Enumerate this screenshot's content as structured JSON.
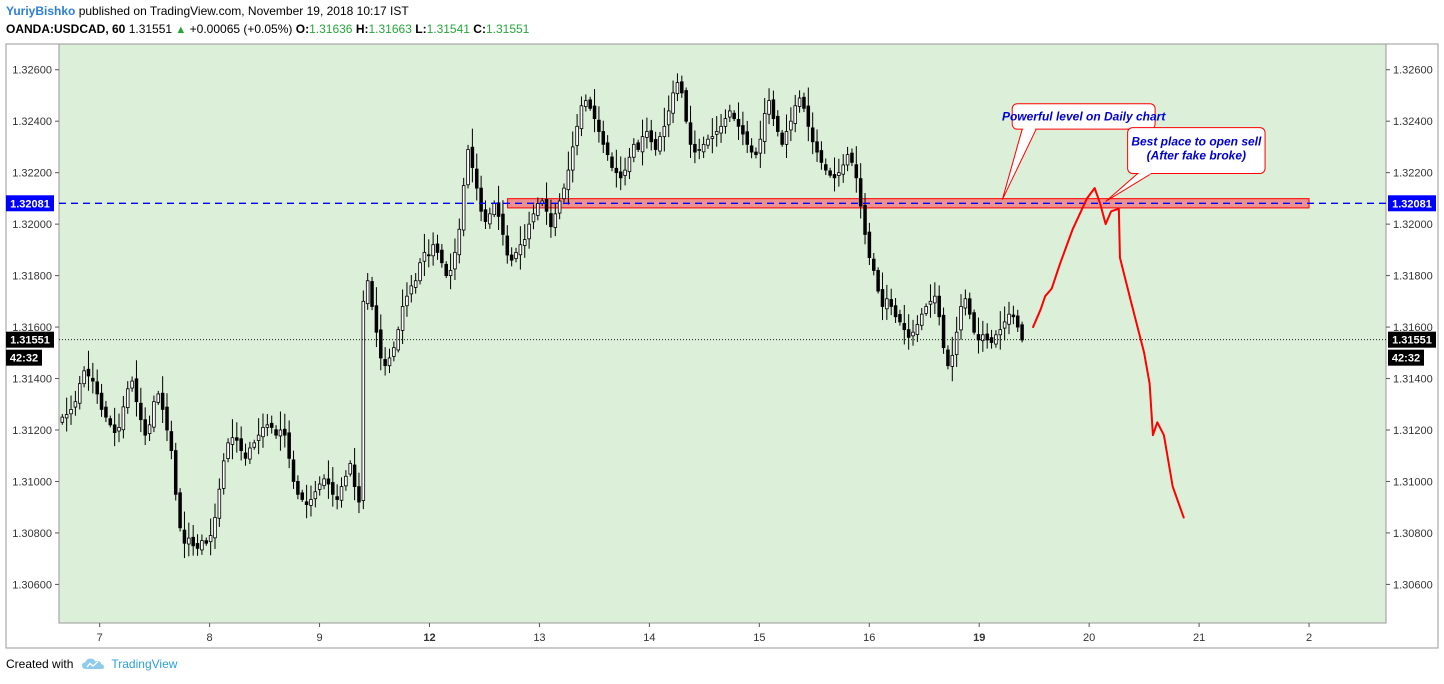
{
  "header": {
    "author": "YuriyBishko",
    "published_text": "published on TradingView.com, November 19, 2018 10:17 IST",
    "symbol": "OANDA:USDCAD, 60",
    "last": "1.31551",
    "change_arrow": "▲",
    "change": "+0.00065 (+0.05%)",
    "o_label": "O:",
    "o": "1.31636",
    "h_label": "H:",
    "h": "1.31663",
    "l_label": "L:",
    "l": "1.31541",
    "c_label": "C:",
    "c": "1.31551"
  },
  "footer": {
    "created_with": "Created with",
    "brand": "TradingView"
  },
  "colors": {
    "bull": "#ffffff",
    "bear": "#000000",
    "plot_bg": "#dcefd9",
    "level_line": "#0000ff",
    "zone_fill": "#f08080",
    "zone_stroke": "#ff0000",
    "drawing": "#ff0000",
    "annotation_text": "#0000cc"
  },
  "chart_data": {
    "type": "candlestick",
    "symbol": "OANDA:USDCAD",
    "timeframe": "60",
    "ylim": [
      1.3045,
      1.327
    ],
    "y_ticks": [
      "1.30600",
      "1.30800",
      "1.31000",
      "1.31200",
      "1.31400",
      "1.31600",
      "1.31800",
      "1.32000",
      "1.32200",
      "1.32400",
      "1.32600"
    ],
    "x_ticks": [
      {
        "label": "7",
        "x": 7,
        "bold": false
      },
      {
        "label": "8",
        "x": 8,
        "bold": false
      },
      {
        "label": "9",
        "x": 9,
        "bold": false
      },
      {
        "label": "12",
        "x": 10,
        "bold": true
      },
      {
        "label": "13",
        "x": 11,
        "bold": false
      },
      {
        "label": "14",
        "x": 12,
        "bold": false
      },
      {
        "label": "15",
        "x": 13,
        "bold": false
      },
      {
        "label": "16",
        "x": 14,
        "bold": false
      },
      {
        "label": "19",
        "x": 15,
        "bold": true
      },
      {
        "label": "20",
        "x": 16,
        "bold": false
      },
      {
        "label": "21",
        "x": 17,
        "bold": false
      },
      {
        "label": "2",
        "x": 18,
        "bold": false
      }
    ],
    "xlim": [
      6.63,
      18.7
    ],
    "candles_start_x": 6.66,
    "candles_end_x": 15.39,
    "closes": [
      1.3125,
      1.3126,
      1.3128,
      1.3131,
      1.3138,
      1.3143,
      1.3141,
      1.3139,
      1.3134,
      1.3128,
      1.3125,
      1.3122,
      1.3119,
      1.3121,
      1.3129,
      1.3136,
      1.3139,
      1.3131,
      1.3124,
      1.3118,
      1.3122,
      1.3131,
      1.3134,
      1.3128,
      1.312,
      1.3112,
      1.3095,
      1.3082,
      1.3076,
      1.3078,
      1.3075,
      1.3074,
      1.3077,
      1.3076,
      1.3079,
      1.3086,
      1.3097,
      1.3108,
      1.3115,
      1.3117,
      1.3116,
      1.3112,
      1.3109,
      1.3113,
      1.3115,
      1.3118,
      1.3121,
      1.3122,
      1.3121,
      1.3118,
      1.312,
      1.3118,
      1.3109,
      1.31,
      1.3095,
      1.3093,
      1.3091,
      1.3093,
      1.3096,
      1.3099,
      1.3101,
      1.3099,
      1.3095,
      1.3093,
      1.3098,
      1.3102,
      1.3107,
      1.3098,
      1.3092,
      1.317,
      1.3178,
      1.3168,
      1.3158,
      1.3148,
      1.3145,
      1.3148,
      1.3152,
      1.3159,
      1.3168,
      1.3172,
      1.3176,
      1.3178,
      1.3185,
      1.3189,
      1.3188,
      1.3192,
      1.3189,
      1.3185,
      1.318,
      1.3182,
      1.3189,
      1.3198,
      1.3215,
      1.3229,
      1.3222,
      1.3214,
      1.3205,
      1.3201,
      1.3204,
      1.3208,
      1.3203,
      1.3196,
      1.3188,
      1.3186,
      1.3189,
      1.3192,
      1.3194,
      1.32,
      1.3204,
      1.3208,
      1.3209,
      1.3205,
      1.3199,
      1.3204,
      1.3209,
      1.3214,
      1.3221,
      1.323,
      1.3238,
      1.3246,
      1.3248,
      1.3245,
      1.3241,
      1.3236,
      1.3231,
      1.3227,
      1.3222,
      1.322,
      1.3218,
      1.3221,
      1.3226,
      1.3231,
      1.3229,
      1.3234,
      1.3236,
      1.3232,
      1.3229,
      1.3234,
      1.3238,
      1.3244,
      1.3251,
      1.3255,
      1.3251,
      1.324,
      1.3231,
      1.3228,
      1.3229,
      1.3231,
      1.3233,
      1.3234,
      1.3236,
      1.3238,
      1.3241,
      1.3244,
      1.3241,
      1.3238,
      1.3235,
      1.3231,
      1.3228,
      1.3227,
      1.3233,
      1.3243,
      1.3248,
      1.3241,
      1.3236,
      1.3231,
      1.3236,
      1.324,
      1.3246,
      1.3249,
      1.3245,
      1.3238,
      1.3232,
      1.3228,
      1.3224,
      1.3221,
      1.3219,
      1.3218,
      1.322,
      1.3223,
      1.3227,
      1.3224,
      1.3218,
      1.3207,
      1.3196,
      1.3187,
      1.3182,
      1.3174,
      1.3168,
      1.3171,
      1.3168,
      1.3164,
      1.3162,
      1.3159,
      1.3156,
      1.3158,
      1.3161,
      1.3165,
      1.3168,
      1.317,
      1.3172,
      1.3164,
      1.3152,
      1.3145,
      1.3149,
      1.3158,
      1.3168,
      1.3171,
      1.3165,
      1.3158,
      1.3155,
      1.3157,
      1.3155,
      1.3154,
      1.3157,
      1.3159,
      1.3162,
      1.3165,
      1.3164,
      1.316,
      1.3155
    ],
    "level": {
      "price": 1.32081,
      "label": "1.32081"
    },
    "current": {
      "price": 1.31551,
      "label": "1.31551",
      "countdown": "42:32"
    },
    "zone": {
      "x0": 10.71,
      "x1": 18.0,
      "y0": 1.32063,
      "y1": 1.32099
    },
    "prediction_path": [
      [
        15.49,
        1.316
      ],
      [
        15.56,
        1.3167
      ],
      [
        15.6,
        1.3172
      ],
      [
        15.66,
        1.3175
      ],
      [
        15.73,
        1.3184
      ],
      [
        15.85,
        1.3198
      ],
      [
        15.98,
        1.321
      ],
      [
        16.05,
        1.3214
      ],
      [
        16.1,
        1.3208
      ],
      [
        16.15,
        1.32
      ],
      [
        16.2,
        1.3205
      ],
      [
        16.27,
        1.3206
      ],
      [
        16.28,
        1.3187
      ],
      [
        16.38,
        1.317
      ],
      [
        16.5,
        1.315
      ],
      [
        16.55,
        1.3138
      ],
      [
        16.58,
        1.3118
      ],
      [
        16.62,
        1.3123
      ],
      [
        16.68,
        1.3118
      ],
      [
        16.76,
        1.3098
      ],
      [
        16.86,
        1.3086
      ]
    ],
    "annotations": [
      {
        "text": "Powerful level on Daily chart",
        "box_x": [
          15.3,
          16.6
        ],
        "box_y": [
          1.32468,
          1.32369
        ],
        "pointer": [
          15.21,
          1.32095
        ]
      },
      {
        "text": "Best place to open sell",
        "text2": "(After fake broke)",
        "box_x": [
          16.35,
          17.6
        ],
        "box_y": [
          1.32375,
          1.32197
        ],
        "pointer": [
          16.15,
          1.32088
        ]
      }
    ]
  }
}
